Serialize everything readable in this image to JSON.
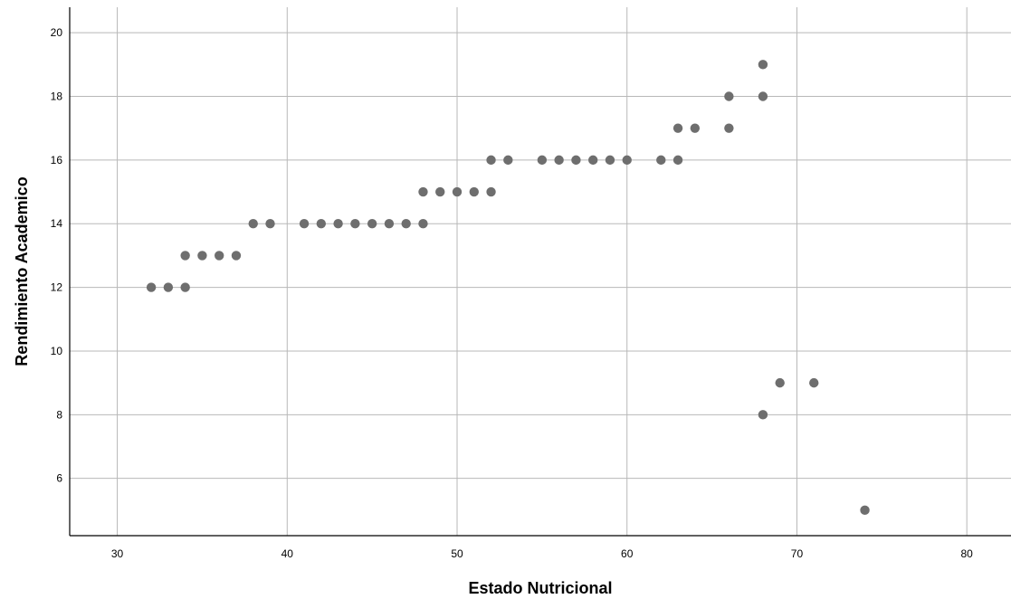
{
  "chart_data": {
    "type": "scatter",
    "title": "",
    "xlabel": "Estado Nutricional",
    "ylabel": "Rendimiento Academico",
    "xlim": [
      27.2,
      82.6
    ],
    "ylim": [
      4.2,
      20.8
    ],
    "xticks": [
      30,
      40,
      50,
      60,
      70,
      80
    ],
    "yticks": [
      6,
      8,
      10,
      12,
      14,
      16,
      18,
      20
    ],
    "xtick_labels": [
      "30",
      "40",
      "50",
      "60",
      "70",
      "80"
    ],
    "ytick_labels": [
      "6",
      "8",
      "10",
      "12",
      "14",
      "16",
      "18",
      "20"
    ],
    "grid": true,
    "legend": "none",
    "point_color": "#6e6e6e",
    "points": [
      {
        "x": 32,
        "y": 12
      },
      {
        "x": 33,
        "y": 12
      },
      {
        "x": 34,
        "y": 12
      },
      {
        "x": 34,
        "y": 13
      },
      {
        "x": 35,
        "y": 13
      },
      {
        "x": 36,
        "y": 13
      },
      {
        "x": 37,
        "y": 13
      },
      {
        "x": 38,
        "y": 14
      },
      {
        "x": 39,
        "y": 14
      },
      {
        "x": 41,
        "y": 14
      },
      {
        "x": 42,
        "y": 14
      },
      {
        "x": 43,
        "y": 14
      },
      {
        "x": 44,
        "y": 14
      },
      {
        "x": 45,
        "y": 14
      },
      {
        "x": 46,
        "y": 14
      },
      {
        "x": 47,
        "y": 14
      },
      {
        "x": 48,
        "y": 14
      },
      {
        "x": 48,
        "y": 15
      },
      {
        "x": 49,
        "y": 15
      },
      {
        "x": 50,
        "y": 15
      },
      {
        "x": 51,
        "y": 15
      },
      {
        "x": 52,
        "y": 15
      },
      {
        "x": 52,
        "y": 16
      },
      {
        "x": 53,
        "y": 16
      },
      {
        "x": 55,
        "y": 16
      },
      {
        "x": 56,
        "y": 16
      },
      {
        "x": 57,
        "y": 16
      },
      {
        "x": 58,
        "y": 16
      },
      {
        "x": 59,
        "y": 16
      },
      {
        "x": 60,
        "y": 16
      },
      {
        "x": 62,
        "y": 16
      },
      {
        "x": 63,
        "y": 16
      },
      {
        "x": 63,
        "y": 17
      },
      {
        "x": 64,
        "y": 17
      },
      {
        "x": 66,
        "y": 17
      },
      {
        "x": 66,
        "y": 18
      },
      {
        "x": 68,
        "y": 18
      },
      {
        "x": 68,
        "y": 19
      },
      {
        "x": 68,
        "y": 8
      },
      {
        "x": 69,
        "y": 9
      },
      {
        "x": 71,
        "y": 9
      },
      {
        "x": 74,
        "y": 5
      }
    ]
  }
}
